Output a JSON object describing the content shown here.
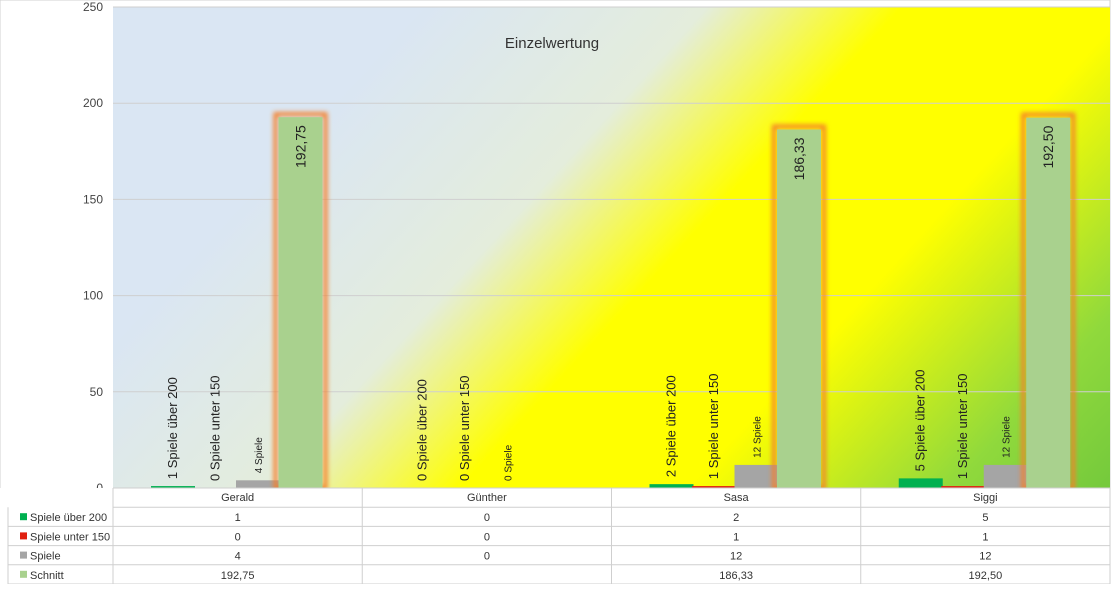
{
  "chart_data": {
    "type": "bar",
    "title": "Einzelwertung",
    "categories": [
      "Gerald",
      "Günther",
      "Sasa",
      "Siggi"
    ],
    "ylim": [
      0,
      250
    ],
    "yticks": [
      "0",
      "50",
      "100",
      "150",
      "200",
      "250"
    ],
    "grid": true,
    "legend_placement": "data-table-left",
    "series": [
      {
        "name": "Spiele über 200",
        "color": "#00b050",
        "values": [
          1,
          0,
          2,
          5
        ],
        "labels": [
          "1 Spiele über 200",
          "0 Spiele über 200",
          "2 Spiele über 200",
          "5 Spiele über 200"
        ]
      },
      {
        "name": "Spiele unter 150",
        "color": "#e02010",
        "values": [
          0,
          0,
          1,
          1
        ],
        "labels": [
          "0 Spiele unter 150",
          "0 Spiele unter 150",
          "1 Spiele unter 150",
          "1 Spiele unter 150"
        ]
      },
      {
        "name": "Spiele",
        "color": "#a5a5a5",
        "values": [
          4,
          0,
          12,
          12
        ],
        "labels": [
          "4 Spiele",
          "0 Spiele",
          "12 Spiele",
          "12 Spiele"
        ]
      },
      {
        "name": "Schnitt",
        "color": "#a9d18e",
        "values": [
          192.75,
          0,
          186.33,
          192.5
        ],
        "labels": [
          "192,75",
          "",
          "186,33",
          "192,50"
        ]
      }
    ],
    "table": {
      "rows": [
        [
          "1",
          "0",
          "2",
          "5"
        ],
        [
          "0",
          "0",
          "1",
          "1"
        ],
        [
          "4",
          "0",
          "12",
          "12"
        ],
        [
          "192,75",
          "",
          "186,33",
          "192,50"
        ]
      ]
    }
  }
}
